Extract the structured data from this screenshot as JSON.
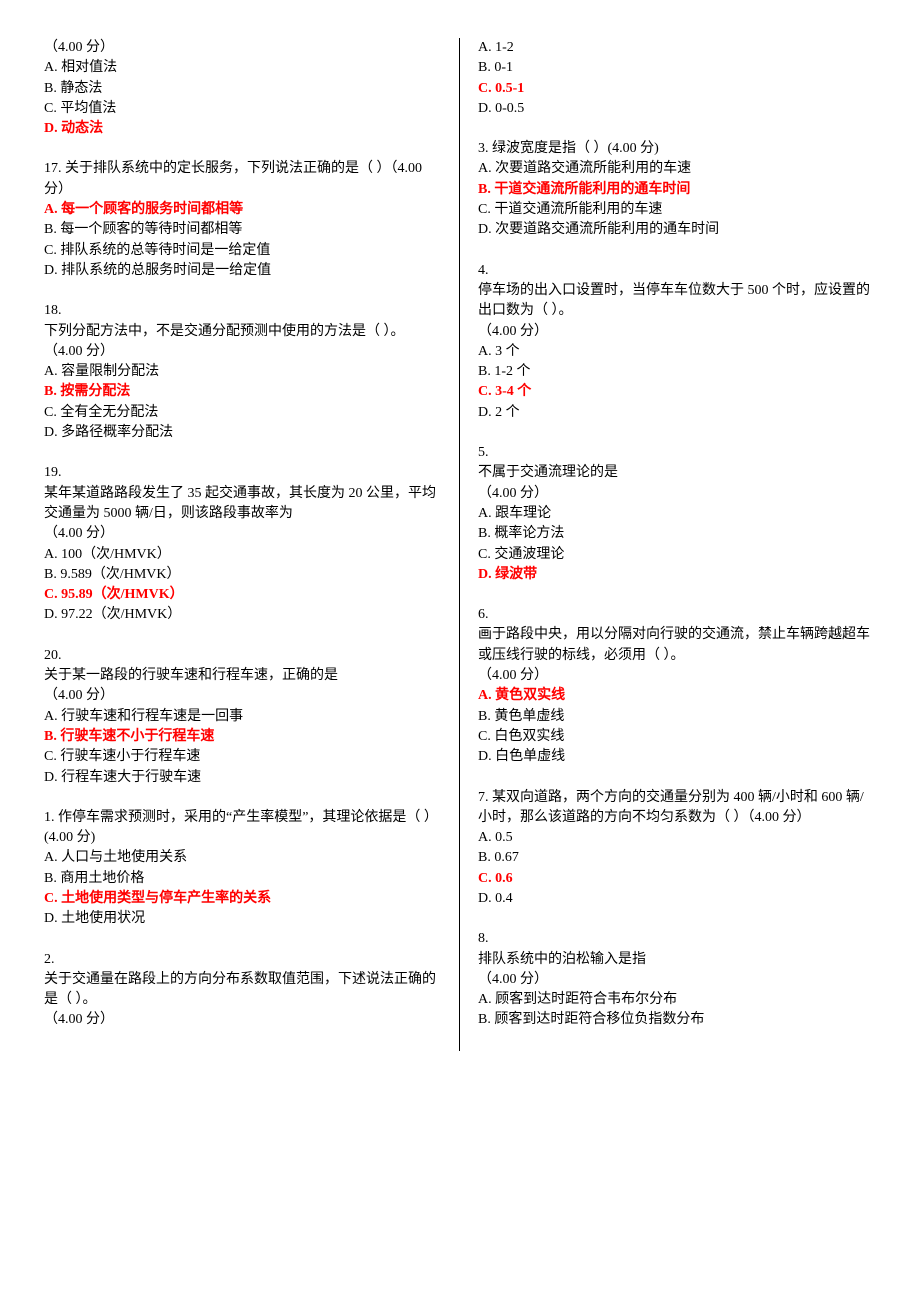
{
  "left": [
    {
      "lines": [
        {
          "t": "（4.00 分）",
          "c": false
        },
        {
          "t": "A.  相对值法",
          "c": false
        },
        {
          "t": "B.  静态法",
          "c": false
        },
        {
          "t": "C.  平均值法",
          "c": false
        },
        {
          "t": "D.  动态法",
          "c": true
        }
      ]
    },
    {
      "lines": [
        {
          "t": "17. 关于排队系统中的定长服务，下列说法正确的是（   ）（4.00 分）",
          "c": false
        },
        {
          "t": "A.  每一个顾客的服务时间都相等",
          "c": true
        },
        {
          "t": "B.  每一个顾客的等待时间都相等",
          "c": false
        },
        {
          "t": "C.  排队系统的总等待时间是一给定值",
          "c": false
        },
        {
          "t": "D.  排队系统的总服务时间是一给定值",
          "c": false
        }
      ]
    },
    {
      "lines": [
        {
          "t": "18.",
          "c": false
        },
        {
          "t": "下列分配方法中，不是交通分配预测中使用的方法是（   ）。",
          "c": false
        },
        {
          "t": "（4.00 分）",
          "c": false
        },
        {
          "t": "A.  容量限制分配法",
          "c": false
        },
        {
          "t": "B.  按需分配法",
          "c": true
        },
        {
          "t": "C.  全有全无分配法",
          "c": false
        },
        {
          "t": "D.  多路径概率分配法",
          "c": false
        }
      ]
    },
    {
      "lines": [
        {
          "t": "19.",
          "c": false
        },
        {
          "t": "某年某道路路段发生了 35 起交通事故，其长度为 20 公里，平均交通量为 5000 辆/日，则该路段事故率为",
          "c": false
        },
        {
          "t": "（4.00 分）",
          "c": false
        },
        {
          "t": "A.  100（次/HMVK）",
          "c": false
        },
        {
          "t": "B.  9.589（次/HMVK）",
          "c": false
        },
        {
          "t": "C.  95.89（次/HMVK）",
          "c": true
        },
        {
          "t": "D.  97.22（次/HMVK）",
          "c": false
        }
      ]
    },
    {
      "lines": [
        {
          "t": "20.",
          "c": false
        },
        {
          "t": "关于某一路段的行驶车速和行程车速，正确的是",
          "c": false
        },
        {
          "t": "（4.00 分）",
          "c": false
        },
        {
          "t": "A.  行驶车速和行程车速是一回事",
          "c": false
        },
        {
          "t": "B.  行驶车速不小于行程车速",
          "c": true
        },
        {
          "t": "C.  行驶车速小于行程车速",
          "c": false
        },
        {
          "t": "D.  行程车速大于行驶车速",
          "c": false
        }
      ]
    },
    {
      "lines": [
        {
          "t": "1. 作停车需求预测时，采用的“产生率模型”，其理论依据是（   ）(4.00 分)",
          "c": false
        },
        {
          "t": "A.  人口与土地使用关系",
          "c": false
        },
        {
          "t": "B.  商用土地价格",
          "c": false
        },
        {
          "t": "C.  土地使用类型与停车产生率的关系",
          "c": true
        },
        {
          "t": "D.  土地使用状况",
          "c": false
        }
      ]
    },
    {
      "lines": [
        {
          "t": "2.",
          "c": false
        },
        {
          "t": "关于交通量在路段上的方向分布系数取值范围，下述说法正确的是（   ）。",
          "c": false
        },
        {
          "t": "（4.00 分）",
          "c": false
        }
      ]
    }
  ],
  "right": [
    {
      "lines": [
        {
          "t": "A.  1-2",
          "c": false
        },
        {
          "t": "B.  0-1",
          "c": false
        },
        {
          "t": "C.  0.5-1",
          "c": true
        },
        {
          "t": "D.  0-0.5",
          "c": false
        }
      ]
    },
    {
      "lines": [
        {
          "t": "3. 绿波宽度是指（   ）(4.00 分)",
          "c": false
        },
        {
          "t": "A.  次要道路交通流所能利用的车速",
          "c": false
        },
        {
          "t": "B.  干道交通流所能利用的通车时间",
          "c": true
        },
        {
          "t": "C.  干道交通流所能利用的车速",
          "c": false
        },
        {
          "t": "D.  次要道路交通流所能利用的通车时间",
          "c": false
        }
      ]
    },
    {
      "lines": [
        {
          "t": "4.",
          "c": false
        },
        {
          "t": "停车场的出入口设置时，当停车车位数大于 500 个时，应设置的出口数为（   ）。",
          "c": false
        },
        {
          "t": "（4.00 分）",
          "c": false
        },
        {
          "t": "A.  3 个",
          "c": false
        },
        {
          "t": "B.  1-2 个",
          "c": false
        },
        {
          "t": "C.  3-4 个",
          "c": true
        },
        {
          "t": "D.  2 个",
          "c": false
        }
      ]
    },
    {
      "lines": [
        {
          "t": "5.",
          "c": false
        },
        {
          "t": "不属于交通流理论的是",
          "c": false
        },
        {
          "t": "（4.00 分）",
          "c": false
        },
        {
          "t": "A.  跟车理论",
          "c": false
        },
        {
          "t": "B.  概率论方法",
          "c": false
        },
        {
          "t": "C.  交通波理论",
          "c": false
        },
        {
          "t": "D.  绿波带",
          "c": true
        }
      ]
    },
    {
      "lines": [
        {
          "t": "6.",
          "c": false
        },
        {
          "t": "画于路段中央，用以分隔对向行驶的交通流，禁止车辆跨越超车或压线行驶的标线，必须用（   ）。",
          "c": false
        },
        {
          "t": "（4.00 分）",
          "c": false
        },
        {
          "t": "A.  黄色双实线",
          "c": true
        },
        {
          "t": "B.  黄色单虚线",
          "c": false
        },
        {
          "t": "C.  白色双实线",
          "c": false
        },
        {
          "t": "D.  白色单虚线",
          "c": false
        }
      ]
    },
    {
      "lines": [
        {
          "t": "7. 某双向道路，两个方向的交通量分别为 400 辆/小时和 600 辆/小时，那么该道路的方向不均匀系数为（   ）（4.00 分）",
          "c": false
        },
        {
          "t": "A.  0.5",
          "c": false
        },
        {
          "t": "B.  0.67",
          "c": false
        },
        {
          "t": "C.  0.6",
          "c": true
        },
        {
          "t": "D.  0.4",
          "c": false
        }
      ]
    },
    {
      "lines": [
        {
          "t": "8.",
          "c": false
        },
        {
          "t": "排队系统中的泊松输入是指",
          "c": false
        },
        {
          "t": "（4.00 分）",
          "c": false
        },
        {
          "t": "A.  顾客到达时距符合韦布尔分布",
          "c": false
        },
        {
          "t": "B.  顾客到达时距符合移位负指数分布",
          "c": false
        }
      ]
    }
  ]
}
